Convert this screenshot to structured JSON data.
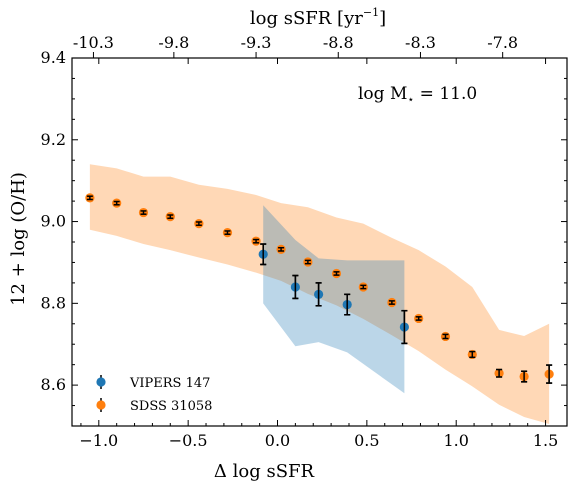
{
  "chart_data": {
    "type": "scatter",
    "xlabel": "Δ log sSFR",
    "ylabel": "12 + log (O/H)",
    "top_xlabel": "log sSFR [yr",
    "top_xlabel_sup": "−1",
    "top_xlabel_close": "]",
    "annotation_prefix": "log M",
    "annotation_sub": "⋆",
    "annotation_suffix": " = 11.0",
    "xlim": [
      -1.15,
      1.62
    ],
    "ylim": [
      8.5,
      9.4
    ],
    "xticks": [
      -1.0,
      -0.5,
      0.0,
      0.5,
      1.0,
      1.5
    ],
    "xtick_labels": [
      "−1.0",
      "−0.5",
      "0.0",
      "0.5",
      "1.0",
      "1.5"
    ],
    "yticks": [
      8.6,
      8.8,
      9.0,
      9.2,
      9.4
    ],
    "ytick_labels": [
      "8.6",
      "8.8",
      "9.0",
      "9.2",
      "9.4"
    ],
    "top_xticks": [
      -1.03,
      -0.58,
      -0.12,
      0.34,
      0.8,
      1.26
    ],
    "top_xtick_labels": [
      "-10.3",
      "-9.8",
      "-9.3",
      "-8.8",
      "-8.3",
      "-7.8"
    ],
    "grid": false,
    "legend_position": "lower-left",
    "series": [
      {
        "name": "VIPERS 147",
        "color": "#1f77b4",
        "x": [
          -0.08,
          0.1,
          0.23,
          0.39,
          0.71
        ],
        "y": [
          8.92,
          8.84,
          8.822,
          8.797,
          8.742
        ],
        "yerr": [
          0.025,
          0.028,
          0.028,
          0.025,
          0.04
        ],
        "band_x": [
          -0.08,
          0.1,
          0.23,
          0.39,
          0.71
        ],
        "band_lower": [
          8.8,
          8.695,
          8.705,
          8.68,
          8.58
        ],
        "band_upper": [
          9.04,
          8.955,
          8.91,
          8.905,
          8.905
        ]
      },
      {
        "name": "SDSS 31058",
        "color": "#ff7f0e",
        "x": [
          -1.05,
          -0.9,
          -0.75,
          -0.6,
          -0.44,
          -0.28,
          -0.12,
          0.02,
          0.17,
          0.33,
          0.48,
          0.64,
          0.79,
          0.94,
          1.09,
          1.24,
          1.38,
          1.52
        ],
        "y": [
          9.058,
          9.045,
          9.022,
          9.012,
          8.995,
          8.973,
          8.952,
          8.932,
          8.901,
          8.873,
          8.84,
          8.802,
          8.763,
          8.719,
          8.675,
          8.629,
          8.621,
          8.627
        ],
        "yerr": [
          0.004,
          0.004,
          0.004,
          0.004,
          0.004,
          0.004,
          0.004,
          0.004,
          0.004,
          0.004,
          0.004,
          0.004,
          0.004,
          0.005,
          0.007,
          0.009,
          0.013,
          0.022
        ],
        "band_x": [
          -1.05,
          -0.9,
          -0.75,
          -0.6,
          -0.44,
          -0.28,
          -0.12,
          0.02,
          0.17,
          0.33,
          0.48,
          0.64,
          0.79,
          0.94,
          1.09,
          1.24,
          1.38,
          1.52
        ],
        "band_lower": [
          8.98,
          8.965,
          8.945,
          8.93,
          8.912,
          8.895,
          8.875,
          8.855,
          8.823,
          8.795,
          8.762,
          8.722,
          8.683,
          8.638,
          8.597,
          8.552,
          8.522,
          8.505
        ],
        "band_upper": [
          9.14,
          9.13,
          9.11,
          9.11,
          9.09,
          9.08,
          9.065,
          9.045,
          9.035,
          9.01,
          8.995,
          8.96,
          8.93,
          8.89,
          8.84,
          8.735,
          8.72,
          8.75
        ]
      }
    ]
  }
}
